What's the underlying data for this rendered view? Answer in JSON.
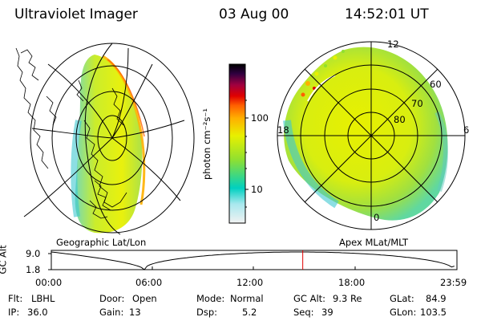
{
  "header": {
    "title": "Ultraviolet Imager",
    "date": "03 Aug 00",
    "time": "14:52:01 UT"
  },
  "geo_panel": {
    "label": "Geographic Lat/Lon"
  },
  "polar_panel": {
    "label": "Apex MLat/MLT",
    "mlt_labels": {
      "top": "12",
      "left": "18",
      "right": "6",
      "bottom": "0"
    },
    "mlat_rings": [
      "60",
      "70",
      "80"
    ]
  },
  "colorbar": {
    "unit_label": "photon cm⁻²s⁻¹",
    "scale": "log",
    "ticks": [
      {
        "value": 100,
        "label": "100"
      },
      {
        "value": 10,
        "label": "10"
      }
    ],
    "colors_low_to_high": [
      "#f2f2f2",
      "#7fe0e8",
      "#00d0c0",
      "#90e030",
      "#e8f000",
      "#ffb000",
      "#ff6000",
      "#e00000",
      "#a00040",
      "#300040",
      "#000000"
    ]
  },
  "altitude_plot": {
    "ylabel": "GC Alt",
    "yticks": [
      "9.0",
      "1.8"
    ],
    "xticks": [
      "00:00",
      "06:00",
      "12:00",
      "18:00",
      "23:59"
    ],
    "current_time_marker": "14:52",
    "marker_color": "#e00000"
  },
  "info": {
    "filter": {
      "label": "Flt:",
      "value": "LBHL"
    },
    "ip": {
      "label": "IP:",
      "value": "36.0"
    },
    "door": {
      "label": "Door:",
      "value": "Open"
    },
    "gain": {
      "label": "Gain:",
      "value": "13"
    },
    "mode": {
      "label": "Mode:",
      "value": "Normal"
    },
    "dsp": {
      "label": "Dsp:",
      "value": "5.2"
    },
    "gc_alt": {
      "label": "GC Alt:",
      "value": "9.3 Re"
    },
    "seq": {
      "label": "Seq:",
      "value": "39"
    },
    "glat": {
      "label": "GLat:",
      "value": "84.9"
    },
    "glon": {
      "label": "GLon:",
      "value": "103.5"
    }
  }
}
